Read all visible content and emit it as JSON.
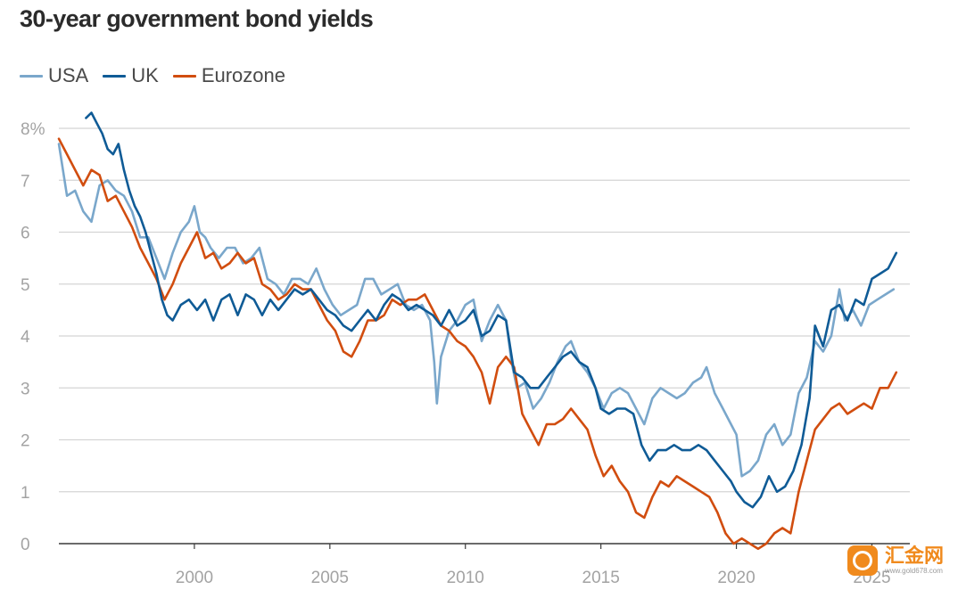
{
  "chart_data": {
    "type": "line",
    "title": "30-year government bond yields",
    "xlabel": "",
    "ylabel": "",
    "xlim": [
      1995.0,
      2026.4
    ],
    "ylim": [
      0,
      8
    ],
    "y_ticks": [
      {
        "value": 8,
        "label": "8%"
      },
      {
        "value": 7,
        "label": "7"
      },
      {
        "value": 6,
        "label": "6"
      },
      {
        "value": 5,
        "label": "5"
      },
      {
        "value": 4,
        "label": "4"
      },
      {
        "value": 3,
        "label": "3"
      },
      {
        "value": 2,
        "label": "2"
      },
      {
        "value": 1,
        "label": "1"
      },
      {
        "value": 0,
        "label": "0"
      }
    ],
    "x_ticks": [
      {
        "value": 2000,
        "label": "2000"
      },
      {
        "value": 2005,
        "label": "2005"
      },
      {
        "value": 2010,
        "label": "2010"
      },
      {
        "value": 2015,
        "label": "2015"
      },
      {
        "value": 2020,
        "label": "2020"
      },
      {
        "value": 2025,
        "label": "2025"
      }
    ],
    "grid": "horizontal",
    "legend_position": "top-left",
    "series": [
      {
        "name": "USA",
        "color": "#7aa7cb",
        "x": [
          1995.0,
          1995.3,
          1995.6,
          1995.9,
          1996.2,
          1996.5,
          1996.8,
          1997.1,
          1997.4,
          1997.7,
          1998.0,
          1998.3,
          1998.6,
          1998.9,
          1999.2,
          1999.5,
          1999.8,
          2000.0,
          2000.2,
          2000.4,
          2000.6,
          2000.9,
          2001.2,
          2001.5,
          2001.8,
          2002.1,
          2002.4,
          2002.7,
          2003.0,
          2003.3,
          2003.6,
          2003.9,
          2004.2,
          2004.5,
          2004.8,
          2005.1,
          2005.4,
          2005.7,
          2006.0,
          2006.3,
          2006.6,
          2006.9,
          2007.2,
          2007.5,
          2007.8,
          2008.1,
          2008.4,
          2008.7,
          2008.85,
          2008.95,
          2009.1,
          2009.4,
          2009.7,
          2010.0,
          2010.3,
          2010.6,
          2010.9,
          2011.2,
          2011.5,
          2011.7,
          2011.9,
          2012.2,
          2012.5,
          2012.8,
          2013.1,
          2013.4,
          2013.7,
          2013.9,
          2014.2,
          2014.5,
          2014.8,
          2015.1,
          2015.4,
          2015.7,
          2016.0,
          2016.3,
          2016.6,
          2016.9,
          2017.2,
          2017.5,
          2017.8,
          2018.1,
          2018.4,
          2018.7,
          2018.9,
          2019.2,
          2019.5,
          2019.8,
          2020.0,
          2020.2,
          2020.5,
          2020.8,
          2021.1,
          2021.4,
          2021.7,
          2022.0,
          2022.3,
          2022.6,
          2022.9,
          2023.2,
          2023.5,
          2023.8,
          2024.0,
          2024.3,
          2024.6,
          2024.9,
          2025.2,
          2025.5,
          2025.8
        ],
        "values": [
          7.7,
          6.7,
          6.8,
          6.4,
          6.2,
          6.9,
          7.0,
          6.8,
          6.7,
          6.4,
          5.9,
          5.9,
          5.5,
          5.1,
          5.6,
          6.0,
          6.2,
          6.5,
          6.0,
          5.9,
          5.7,
          5.5,
          5.7,
          5.7,
          5.4,
          5.5,
          5.7,
          5.1,
          5.0,
          4.8,
          5.1,
          5.1,
          5.0,
          5.3,
          4.9,
          4.6,
          4.4,
          4.5,
          4.6,
          5.1,
          5.1,
          4.8,
          4.9,
          5.0,
          4.6,
          4.5,
          4.6,
          4.3,
          3.5,
          2.7,
          3.6,
          4.1,
          4.3,
          4.6,
          4.7,
          3.9,
          4.3,
          4.6,
          4.3,
          3.5,
          3.0,
          3.1,
          2.6,
          2.8,
          3.1,
          3.5,
          3.8,
          3.9,
          3.5,
          3.3,
          3.0,
          2.6,
          2.9,
          3.0,
          2.9,
          2.6,
          2.3,
          2.8,
          3.0,
          2.9,
          2.8,
          2.9,
          3.1,
          3.2,
          3.4,
          2.9,
          2.6,
          2.3,
          2.1,
          1.3,
          1.4,
          1.6,
          2.1,
          2.3,
          1.9,
          2.1,
          2.9,
          3.2,
          3.9,
          3.7,
          4.0,
          4.9,
          4.3,
          4.5,
          4.2,
          4.6,
          4.7,
          4.8,
          4.9
        ]
      },
      {
        "name": "UK",
        "color": "#0f5b96",
        "x": [
          1996.0,
          1996.2,
          1996.4,
          1996.6,
          1996.8,
          1997.0,
          1997.2,
          1997.4,
          1997.6,
          1997.8,
          1998.0,
          1998.2,
          1998.4,
          1998.6,
          1998.8,
          1999.0,
          1999.2,
          1999.5,
          1999.8,
          2000.1,
          2000.4,
          2000.7,
          2001.0,
          2001.3,
          2001.6,
          2001.9,
          2002.2,
          2002.5,
          2002.8,
          2003.1,
          2003.4,
          2003.7,
          2004.0,
          2004.3,
          2004.6,
          2004.9,
          2005.2,
          2005.5,
          2005.8,
          2006.1,
          2006.4,
          2006.7,
          2007.0,
          2007.3,
          2007.6,
          2007.9,
          2008.2,
          2008.5,
          2008.8,
          2009.1,
          2009.4,
          2009.7,
          2010.0,
          2010.3,
          2010.6,
          2010.9,
          2011.2,
          2011.5,
          2011.8,
          2012.1,
          2012.4,
          2012.7,
          2013.0,
          2013.3,
          2013.6,
          2013.9,
          2014.2,
          2014.5,
          2014.8,
          2015.0,
          2015.3,
          2015.6,
          2015.9,
          2016.2,
          2016.5,
          2016.8,
          2017.1,
          2017.4,
          2017.7,
          2018.0,
          2018.3,
          2018.6,
          2018.9,
          2019.2,
          2019.5,
          2019.8,
          2020.0,
          2020.3,
          2020.6,
          2020.9,
          2021.2,
          2021.5,
          2021.8,
          2022.1,
          2022.4,
          2022.7,
          2022.9,
          2023.2,
          2023.5,
          2023.8,
          2024.1,
          2024.4,
          2024.7,
          2025.0,
          2025.3,
          2025.6,
          2025.9
        ],
        "values": [
          8.2,
          8.3,
          8.1,
          7.9,
          7.6,
          7.5,
          7.7,
          7.2,
          6.8,
          6.5,
          6.3,
          6.0,
          5.6,
          5.2,
          4.7,
          4.4,
          4.3,
          4.6,
          4.7,
          4.5,
          4.7,
          4.3,
          4.7,
          4.8,
          4.4,
          4.8,
          4.7,
          4.4,
          4.7,
          4.5,
          4.7,
          4.9,
          4.8,
          4.9,
          4.7,
          4.5,
          4.4,
          4.2,
          4.1,
          4.3,
          4.5,
          4.3,
          4.6,
          4.8,
          4.7,
          4.5,
          4.6,
          4.5,
          4.4,
          4.2,
          4.5,
          4.2,
          4.3,
          4.5,
          4.0,
          4.1,
          4.4,
          4.3,
          3.3,
          3.2,
          3.0,
          3.0,
          3.2,
          3.4,
          3.6,
          3.7,
          3.5,
          3.4,
          3.0,
          2.6,
          2.5,
          2.6,
          2.6,
          2.5,
          1.9,
          1.6,
          1.8,
          1.8,
          1.9,
          1.8,
          1.8,
          1.9,
          1.8,
          1.6,
          1.4,
          1.2,
          1.0,
          0.8,
          0.7,
          0.9,
          1.3,
          1.0,
          1.1,
          1.4,
          1.9,
          2.8,
          4.2,
          3.8,
          4.5,
          4.6,
          4.3,
          4.7,
          4.6,
          5.1,
          5.2,
          5.3,
          5.6
        ]
      },
      {
        "name": "Eurozone",
        "color": "#d14d0f",
        "x": [
          1995.0,
          1995.3,
          1995.6,
          1995.9,
          1996.2,
          1996.5,
          1996.8,
          1997.1,
          1997.4,
          1997.7,
          1998.0,
          1998.3,
          1998.6,
          1998.9,
          1999.2,
          1999.5,
          1999.8,
          2000.1,
          2000.4,
          2000.7,
          2001.0,
          2001.3,
          2001.6,
          2001.9,
          2002.2,
          2002.5,
          2002.8,
          2003.1,
          2003.4,
          2003.7,
          2004.0,
          2004.3,
          2004.6,
          2004.9,
          2005.2,
          2005.5,
          2005.8,
          2006.1,
          2006.4,
          2006.7,
          2007.0,
          2007.3,
          2007.6,
          2007.9,
          2008.2,
          2008.5,
          2008.8,
          2009.1,
          2009.4,
          2009.7,
          2010.0,
          2010.3,
          2010.6,
          2010.9,
          2011.2,
          2011.5,
          2011.8,
          2012.1,
          2012.4,
          2012.7,
          2013.0,
          2013.3,
          2013.6,
          2013.9,
          2014.2,
          2014.5,
          2014.8,
          2015.1,
          2015.4,
          2015.7,
          2016.0,
          2016.3,
          2016.6,
          2016.9,
          2017.2,
          2017.5,
          2017.8,
          2018.1,
          2018.4,
          2018.7,
          2019.0,
          2019.3,
          2019.6,
          2019.9,
          2020.2,
          2020.5,
          2020.8,
          2021.1,
          2021.4,
          2021.7,
          2022.0,
          2022.3,
          2022.6,
          2022.9,
          2023.2,
          2023.5,
          2023.8,
          2024.1,
          2024.4,
          2024.7,
          2025.0,
          2025.3,
          2025.6,
          2025.9
        ],
        "values": [
          7.8,
          7.5,
          7.2,
          6.9,
          7.2,
          7.1,
          6.6,
          6.7,
          6.4,
          6.1,
          5.7,
          5.4,
          5.1,
          4.7,
          5.0,
          5.4,
          5.7,
          6.0,
          5.5,
          5.6,
          5.3,
          5.4,
          5.6,
          5.4,
          5.5,
          5.0,
          4.9,
          4.7,
          4.8,
          5.0,
          4.9,
          4.9,
          4.6,
          4.3,
          4.1,
          3.7,
          3.6,
          3.9,
          4.3,
          4.3,
          4.4,
          4.7,
          4.6,
          4.7,
          4.7,
          4.8,
          4.5,
          4.2,
          4.1,
          3.9,
          3.8,
          3.6,
          3.3,
          2.7,
          3.4,
          3.6,
          3.4,
          2.5,
          2.2,
          1.9,
          2.3,
          2.3,
          2.4,
          2.6,
          2.4,
          2.2,
          1.7,
          1.3,
          1.5,
          1.2,
          1.0,
          0.6,
          0.5,
          0.9,
          1.2,
          1.1,
          1.3,
          1.2,
          1.1,
          1.0,
          0.9,
          0.6,
          0.2,
          0.0,
          0.1,
          0.0,
          -0.1,
          0.0,
          0.2,
          0.3,
          0.2,
          1.0,
          1.6,
          2.2,
          2.4,
          2.6,
          2.7,
          2.5,
          2.6,
          2.7,
          2.6,
          3.0,
          3.0,
          3.3
        ]
      }
    ]
  },
  "watermark": {
    "name": "汇金网",
    "url": "www.gold678.com"
  }
}
